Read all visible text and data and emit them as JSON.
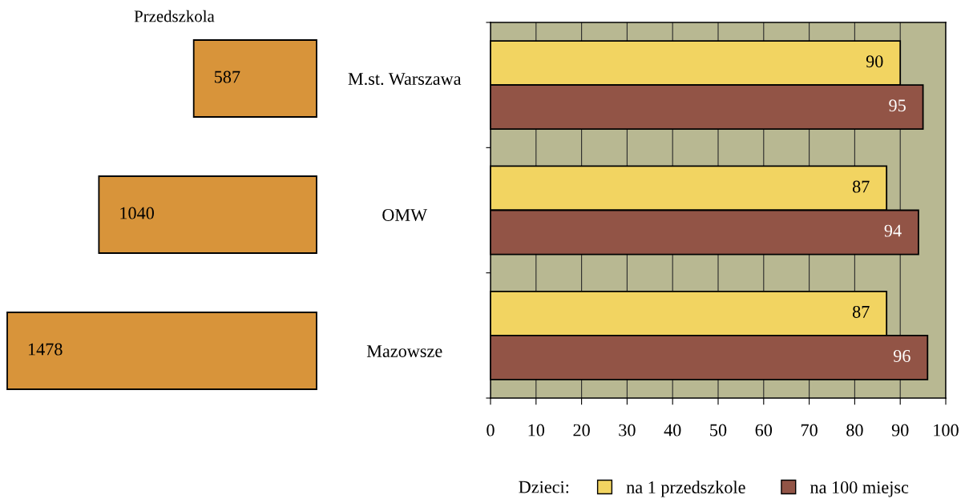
{
  "chart_data": [
    {
      "type": "bar",
      "orientation": "horizontal",
      "title": "Przedszkola",
      "categories": [
        "M.st. Warszawa",
        "OMW",
        "Mazowsze"
      ],
      "values": [
        587,
        1040,
        1478
      ],
      "color": "#d8943a",
      "data_labels": true,
      "tick_labels": "y"
    },
    {
      "type": "bar",
      "orientation": "horizontal",
      "categories": [
        null,
        null,
        null
      ],
      "series": [
        {
          "name": "na 1 przedszkole",
          "color": "#f2d461",
          "values": [
            90,
            87,
            87
          ]
        },
        {
          "name": "na 100 miejsc",
          "color": "#925446",
          "values": [
            95,
            94,
            96
          ]
        }
      ],
      "xlim": [
        0,
        100
      ],
      "xticks": [
        0,
        10,
        20,
        30,
        40,
        50,
        60,
        70,
        80,
        90,
        100
      ],
      "grid": "x",
      "legend": "bottom",
      "legend_title": "Dzieci:",
      "data_labels": true
    }
  ]
}
